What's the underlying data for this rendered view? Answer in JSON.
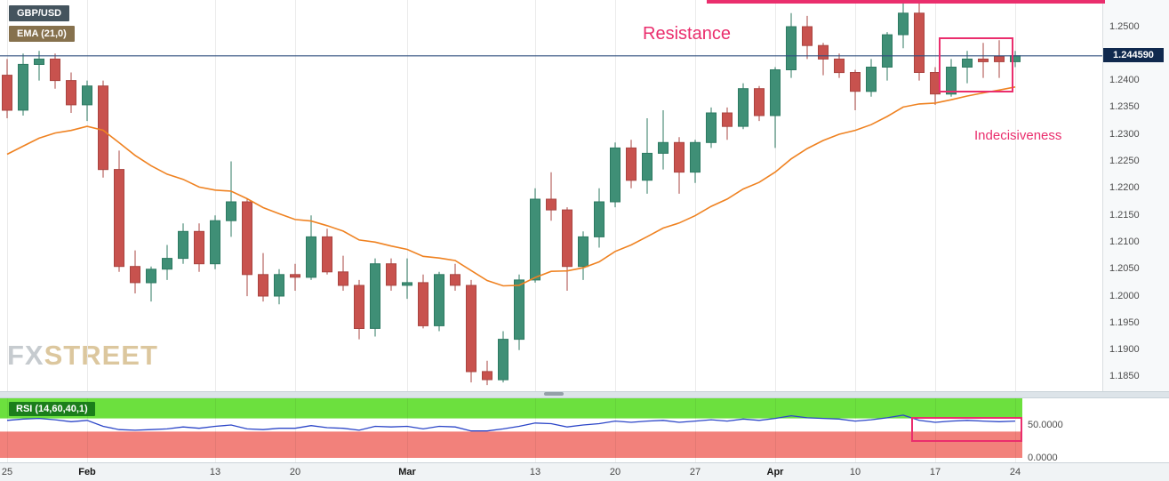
{
  "legend": {
    "symbol": "GBP/USD",
    "ema": "EMA (21,0)"
  },
  "price_chip": {
    "value": "1.244590"
  },
  "annotations": {
    "resistance": "Resistance",
    "indecisiveness": "Indecisiveness"
  },
  "watermark": {
    "fx": "FX",
    "street": "STREET"
  },
  "rsi": {
    "label": "RSI (14,60,40,1)"
  },
  "axes": {
    "price_ticks": [
      "1.2500",
      "1.2450",
      "1.2400",
      "1.2350",
      "1.2300",
      "1.2250",
      "1.2200",
      "1.2150",
      "1.2100",
      "1.2050",
      "1.2000",
      "1.1950",
      "1.1900",
      "1.1850"
    ],
    "rsi_ticks": [
      {
        "label": "50.0000",
        "value": 50
      },
      {
        "label": "0.0000",
        "value": 0
      }
    ],
    "date_ticks": [
      {
        "label": "25",
        "i": 0,
        "bold": false
      },
      {
        "label": "Feb",
        "i": 5,
        "bold": true
      },
      {
        "label": "13",
        "i": 13,
        "bold": false
      },
      {
        "label": "20",
        "i": 18,
        "bold": false
      },
      {
        "label": "Mar",
        "i": 25,
        "bold": true
      },
      {
        "label": "13",
        "i": 33,
        "bold": false
      },
      {
        "label": "20",
        "i": 38,
        "bold": false
      },
      {
        "label": "27",
        "i": 43,
        "bold": false
      },
      {
        "label": "Apr",
        "i": 48,
        "bold": true
      },
      {
        "label": "10",
        "i": 53,
        "bold": false
      },
      {
        "label": "17",
        "i": 58,
        "bold": false
      },
      {
        "label": "24",
        "i": 63,
        "bold": false
      }
    ]
  },
  "colors": {
    "bull": "#3f8f76",
    "bull_border": "#2d7a62",
    "bear": "#c8524e",
    "bear_border": "#a94440",
    "ema": "#ef8221",
    "price_line": "#2e4e7e",
    "price_chip_bg": "#10294e",
    "accent_pink": "#ea2e6d",
    "rsi_line": "#2c46c8",
    "rsi_upper_zone": "#6ce03e",
    "rsi_lower_zone": "#f2817b",
    "rsi_label_bg": "#1b7e1b",
    "legend_symbol_bg": "#44545e",
    "legend_ema_bg": "#86714d",
    "grid": "#ebebeb"
  },
  "chart_data": {
    "type": "candlestick",
    "title": "GBP/USD daily candlestick chart with EMA(21) overlay and RSI(14,60,40,1) sub-panel",
    "pair": "GBP/USD",
    "current_price": 1.24459,
    "y_axis": {
      "min": 1.1823,
      "max": 1.255,
      "tick_step": 0.005
    },
    "dates": [
      "Jan 25",
      "Jan 26",
      "Jan 27",
      "Jan 30",
      "Jan 31",
      "Feb 1",
      "Feb 2",
      "Feb 3",
      "Feb 6",
      "Feb 7",
      "Feb 8",
      "Feb 9",
      "Feb 10",
      "Feb 13",
      "Feb 14",
      "Feb 15",
      "Feb 16",
      "Feb 17",
      "Feb 20",
      "Feb 21",
      "Feb 22",
      "Feb 23",
      "Feb 24",
      "Feb 27",
      "Feb 28",
      "Mar 1",
      "Mar 2",
      "Mar 3",
      "Mar 6",
      "Mar 7",
      "Mar 8",
      "Mar 9",
      "Mar 10",
      "Mar 13",
      "Mar 14",
      "Mar 15",
      "Mar 16",
      "Mar 17",
      "Mar 20",
      "Mar 21",
      "Mar 22",
      "Mar 23",
      "Mar 24",
      "Mar 27",
      "Mar 28",
      "Mar 29",
      "Mar 30",
      "Mar 31",
      "Apr 3",
      "Apr 4",
      "Apr 5",
      "Apr 6",
      "Apr 7",
      "Apr 10",
      "Apr 11",
      "Apr 12",
      "Apr 13",
      "Apr 14",
      "Apr 17",
      "Apr 18",
      "Apr 19",
      "Apr 20",
      "Apr 21",
      "Apr 24"
    ],
    "ohlc": [
      [
        1.241,
        1.244,
        1.233,
        1.2345
      ],
      [
        1.2345,
        1.245,
        1.2335,
        1.243
      ],
      [
        1.243,
        1.2455,
        1.24,
        1.244
      ],
      [
        1.244,
        1.245,
        1.2385,
        1.24
      ],
      [
        1.24,
        1.2415,
        1.234,
        1.2355
      ],
      [
        1.2355,
        1.24,
        1.2325,
        1.239
      ],
      [
        1.239,
        1.24,
        1.222,
        1.2235
      ],
      [
        1.2235,
        1.227,
        1.2045,
        1.2055
      ],
      [
        1.2055,
        1.2085,
        1.2005,
        1.2025
      ],
      [
        1.2025,
        1.2055,
        1.199,
        1.205
      ],
      [
        1.205,
        1.2095,
        1.203,
        1.207
      ],
      [
        1.207,
        1.2135,
        1.206,
        1.212
      ],
      [
        1.212,
        1.2135,
        1.2045,
        1.206
      ],
      [
        1.206,
        1.215,
        1.205,
        1.214
      ],
      [
        1.214,
        1.225,
        1.211,
        1.2175
      ],
      [
        1.2175,
        1.218,
        1.2,
        1.204
      ],
      [
        1.204,
        1.208,
        1.199,
        1.2
      ],
      [
        1.2,
        1.205,
        1.1985,
        1.204
      ],
      [
        1.204,
        1.206,
        1.201,
        1.2035
      ],
      [
        1.2035,
        1.215,
        1.203,
        1.211
      ],
      [
        1.211,
        1.2125,
        1.204,
        1.2045
      ],
      [
        1.2045,
        1.2075,
        1.201,
        1.202
      ],
      [
        1.202,
        1.203,
        1.192,
        1.194
      ],
      [
        1.194,
        1.207,
        1.1925,
        1.206
      ],
      [
        1.206,
        1.207,
        1.201,
        1.202
      ],
      [
        1.202,
        1.207,
        1.1995,
        1.2025
      ],
      [
        1.2025,
        1.204,
        1.194,
        1.1945
      ],
      [
        1.1945,
        1.2045,
        1.1935,
        1.204
      ],
      [
        1.204,
        1.206,
        1.201,
        1.202
      ],
      [
        1.202,
        1.203,
        1.184,
        1.186
      ],
      [
        1.186,
        1.188,
        1.1835,
        1.1845
      ],
      [
        1.1845,
        1.1935,
        1.184,
        1.192
      ],
      [
        1.192,
        1.204,
        1.19,
        1.203
      ],
      [
        1.203,
        1.22,
        1.2025,
        1.218
      ],
      [
        1.218,
        1.223,
        1.214,
        1.216
      ],
      [
        1.216,
        1.2165,
        1.201,
        1.2055
      ],
      [
        1.2055,
        1.212,
        1.203,
        1.211
      ],
      [
        1.211,
        1.22,
        1.209,
        1.2175
      ],
      [
        1.2175,
        1.2285,
        1.2165,
        1.2275
      ],
      [
        1.2275,
        1.229,
        1.22,
        1.2215
      ],
      [
        1.2215,
        1.233,
        1.219,
        1.2265
      ],
      [
        1.2265,
        1.2345,
        1.2235,
        1.2285
      ],
      [
        1.2285,
        1.2295,
        1.219,
        1.223
      ],
      [
        1.223,
        1.229,
        1.221,
        1.2285
      ],
      [
        1.2285,
        1.235,
        1.2275,
        1.234
      ],
      [
        1.234,
        1.235,
        1.229,
        1.2315
      ],
      [
        1.2315,
        1.2395,
        1.231,
        1.2385
      ],
      [
        1.2385,
        1.239,
        1.2325,
        1.2335
      ],
      [
        1.2335,
        1.2425,
        1.2275,
        1.242
      ],
      [
        1.242,
        1.2525,
        1.2405,
        1.25
      ],
      [
        1.25,
        1.252,
        1.244,
        1.2465
      ],
      [
        1.2465,
        1.247,
        1.241,
        1.244
      ],
      [
        1.244,
        1.245,
        1.2405,
        1.2415
      ],
      [
        1.2415,
        1.242,
        1.2345,
        1.238
      ],
      [
        1.238,
        1.244,
        1.237,
        1.2425
      ],
      [
        1.2425,
        1.249,
        1.24,
        1.2485
      ],
      [
        1.2485,
        1.2548,
        1.246,
        1.2525
      ],
      [
        1.2525,
        1.2545,
        1.24,
        1.2415
      ],
      [
        1.2415,
        1.2425,
        1.2355,
        1.2375
      ],
      [
        1.2375,
        1.244,
        1.237,
        1.2425
      ],
      [
        1.2425,
        1.2455,
        1.2395,
        1.244
      ],
      [
        1.244,
        1.247,
        1.2405,
        1.2435
      ],
      [
        1.2445,
        1.2475,
        1.2405,
        1.2435
      ],
      [
        1.2435,
        1.2455,
        1.2425,
        1.2446
      ]
    ],
    "ema": {
      "period": 21,
      "offset": 0,
      "seed": 1.2255
    },
    "rsi": {
      "period": 14,
      "upper_band": 60,
      "lower_band": 40,
      "values": [
        57,
        59,
        60,
        58,
        55,
        57,
        48,
        43,
        42,
        43,
        44,
        47,
        45,
        48,
        50,
        44,
        43,
        45,
        45,
        49,
        46,
        45,
        42,
        48,
        47,
        48,
        44,
        48,
        47,
        41,
        41,
        44,
        48,
        53,
        52,
        47,
        50,
        52,
        56,
        54,
        56,
        57,
        54,
        56,
        58,
        56,
        59,
        57,
        60,
        64,
        61,
        60,
        59,
        56,
        58,
        61,
        65,
        57,
        54,
        56,
        57,
        56,
        55,
        56
      ]
    }
  }
}
